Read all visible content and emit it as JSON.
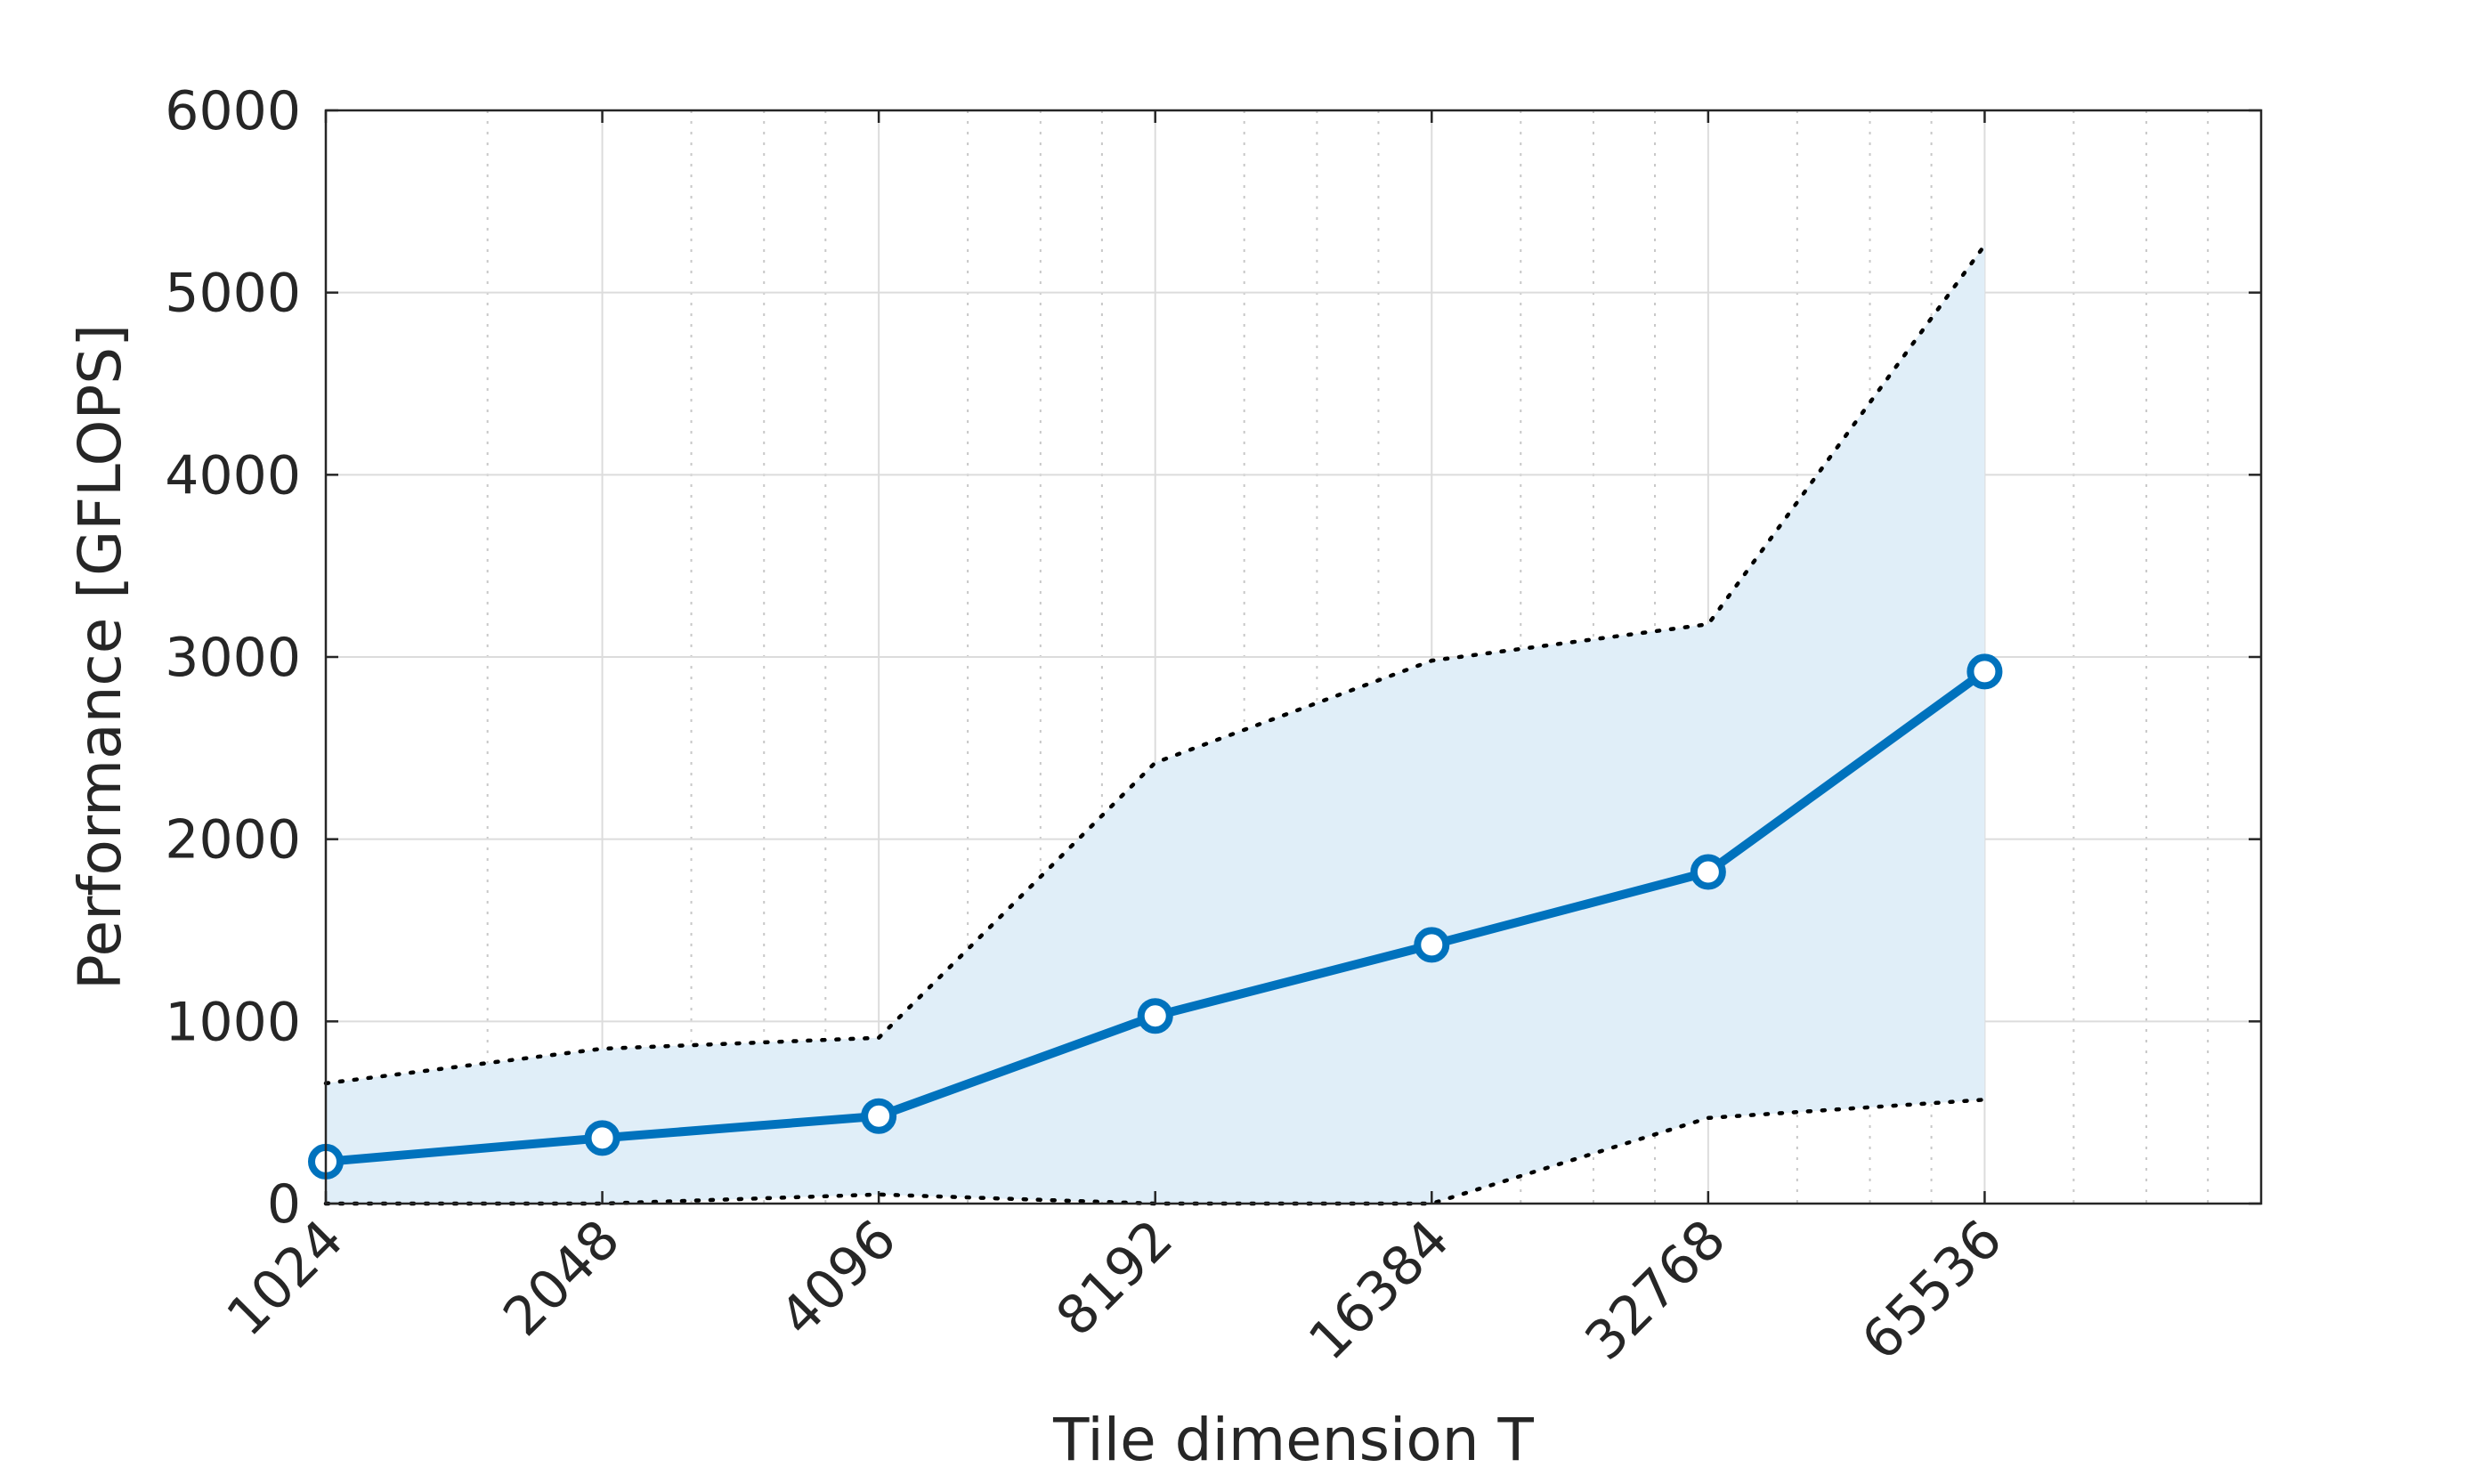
{
  "chart_data": {
    "type": "line",
    "title": "",
    "xlabel": "Tile dimension T",
    "ylabel": "Performance [GFLOPS]",
    "x_scale": "log2",
    "xlim": [
      1024,
      131072
    ],
    "ylim": [
      0,
      6000
    ],
    "grid": true,
    "minor_grid_x": true,
    "x_ticks": [
      1024,
      2048,
      4096,
      8192,
      16384,
      32768,
      65536
    ],
    "x_tick_labels": [
      "1024",
      "2048",
      "4096",
      "8192",
      "16384",
      "32768",
      "65536"
    ],
    "y_ticks": [
      0,
      1000,
      2000,
      3000,
      4000,
      5000,
      6000
    ],
    "y_tick_labels": [
      "0",
      "1000",
      "2000",
      "3000",
      "4000",
      "5000",
      "6000"
    ],
    "x": [
      1024,
      2048,
      4096,
      8192,
      16384,
      32768,
      65536
    ],
    "series": [
      {
        "values": [
          230,
          360,
          480,
          1030,
          1420,
          1820,
          2920
        ],
        "color": "#0072bd",
        "marker": "circle"
      }
    ],
    "band": {
      "upper": [
        660,
        850,
        910,
        2420,
        2980,
        3180,
        5260
      ],
      "lower": [
        0,
        0,
        50,
        0,
        0,
        470,
        570
      ],
      "fill_color": "#e0eef8",
      "line_style": "dotted",
      "line_color": "#000000"
    }
  }
}
